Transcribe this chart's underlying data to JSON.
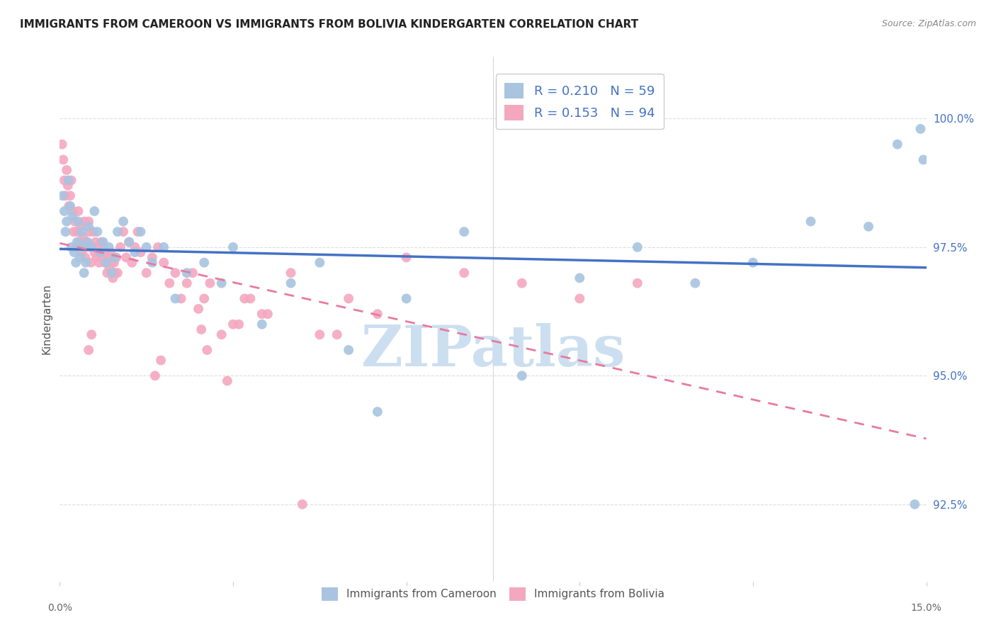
{
  "title": "IMMIGRANTS FROM CAMEROON VS IMMIGRANTS FROM BOLIVIA KINDERGARTEN CORRELATION CHART",
  "source": "Source: ZipAtlas.com",
  "ylabel": "Kindergarten",
  "yticks": [
    92.5,
    95.0,
    97.5,
    100.0
  ],
  "ytick_labels": [
    "92.5%",
    "95.0%",
    "97.5%",
    "100.0%"
  ],
  "xmin": 0.0,
  "xmax": 15.0,
  "ymin": 91.0,
  "ymax": 101.2,
  "r_cameroon": 0.21,
  "n_cameroon": 59,
  "r_bolivia": 0.153,
  "n_bolivia": 94,
  "color_cameroon": "#a8c4e0",
  "color_bolivia": "#f4a8c0",
  "line_color_cameroon": "#4472c4",
  "line_color_bolivia": "#e87a9f",
  "legend_text_color": "#4472c4",
  "watermark_color": "#ccdff0",
  "watermark_text": "ZIPatlas",
  "background_color": "#ffffff",
  "grid_color": "#dddddd",
  "cameroon_x": [
    0.05,
    0.08,
    0.1,
    0.12,
    0.15,
    0.18,
    0.2,
    0.22,
    0.25,
    0.28,
    0.3,
    0.32,
    0.35,
    0.38,
    0.4,
    0.42,
    0.45,
    0.48,
    0.5,
    0.55,
    0.6,
    0.65,
    0.7,
    0.75,
    0.8,
    0.85,
    0.9,
    0.95,
    1.0,
    1.1,
    1.2,
    1.3,
    1.4,
    1.5,
    1.6,
    1.8,
    2.0,
    2.2,
    2.5,
    2.8,
    3.0,
    3.5,
    4.0,
    4.5,
    5.0,
    5.5,
    6.0,
    7.0,
    8.0,
    9.0,
    10.0,
    11.0,
    12.0,
    13.0,
    14.0,
    14.5,
    14.8,
    14.9,
    14.95
  ],
  "cameroon_y": [
    98.5,
    98.2,
    97.8,
    98.0,
    98.8,
    98.3,
    97.5,
    98.1,
    97.4,
    97.2,
    97.6,
    98.0,
    97.3,
    97.8,
    97.5,
    97.0,
    97.2,
    97.6,
    97.9,
    97.5,
    98.2,
    97.8,
    97.4,
    97.6,
    97.2,
    97.5,
    97.0,
    97.3,
    97.8,
    98.0,
    97.6,
    97.4,
    97.8,
    97.5,
    97.2,
    97.5,
    96.5,
    97.0,
    97.2,
    96.8,
    97.5,
    96.0,
    96.8,
    97.2,
    95.5,
    94.3,
    96.5,
    97.8,
    95.0,
    96.9,
    97.5,
    96.8,
    97.2,
    98.0,
    97.9,
    99.5,
    92.5,
    99.8,
    99.2
  ],
  "bolivia_x": [
    0.04,
    0.06,
    0.08,
    0.1,
    0.12,
    0.14,
    0.16,
    0.18,
    0.2,
    0.22,
    0.24,
    0.26,
    0.28,
    0.3,
    0.32,
    0.34,
    0.36,
    0.38,
    0.4,
    0.42,
    0.44,
    0.46,
    0.48,
    0.5,
    0.52,
    0.54,
    0.56,
    0.58,
    0.6,
    0.62,
    0.64,
    0.66,
    0.68,
    0.7,
    0.72,
    0.74,
    0.76,
    0.78,
    0.8,
    0.82,
    0.84,
    0.86,
    0.88,
    0.9,
    0.92,
    0.94,
    0.96,
    0.98,
    1.0,
    1.05,
    1.1,
    1.15,
    1.2,
    1.25,
    1.3,
    1.35,
    1.4,
    1.5,
    1.6,
    1.7,
    1.8,
    1.9,
    2.0,
    2.1,
    2.2,
    2.3,
    2.4,
    2.5,
    2.6,
    2.8,
    3.0,
    3.2,
    3.5,
    4.0,
    4.5,
    5.0,
    5.5,
    6.0,
    7.0,
    8.0,
    9.0,
    10.0,
    2.45,
    2.55,
    1.65,
    1.75,
    0.5,
    0.55,
    2.9,
    3.1,
    3.3,
    3.6,
    4.2,
    4.8
  ],
  "bolivia_y": [
    99.5,
    99.2,
    98.8,
    98.5,
    99.0,
    98.7,
    98.3,
    98.5,
    98.8,
    98.2,
    97.8,
    98.0,
    97.5,
    97.8,
    98.2,
    97.6,
    97.9,
    97.4,
    97.7,
    98.0,
    97.3,
    97.6,
    97.5,
    98.0,
    97.8,
    97.2,
    97.5,
    97.8,
    97.4,
    97.6,
    97.3,
    97.5,
    97.2,
    97.4,
    97.6,
    97.3,
    97.5,
    97.2,
    97.4,
    97.0,
    97.3,
    97.1,
    97.4,
    97.2,
    96.9,
    97.2,
    97.0,
    97.3,
    97.0,
    97.5,
    97.8,
    97.3,
    97.6,
    97.2,
    97.5,
    97.8,
    97.4,
    97.0,
    97.3,
    97.5,
    97.2,
    96.8,
    97.0,
    96.5,
    96.8,
    97.0,
    96.3,
    96.5,
    96.8,
    95.8,
    96.0,
    96.5,
    96.2,
    97.0,
    95.8,
    96.5,
    96.2,
    97.3,
    97.0,
    96.8,
    96.5,
    96.8,
    95.9,
    95.5,
    95.0,
    95.3,
    95.5,
    95.8,
    94.9,
    96.0,
    96.5,
    96.2,
    92.5,
    95.8
  ]
}
